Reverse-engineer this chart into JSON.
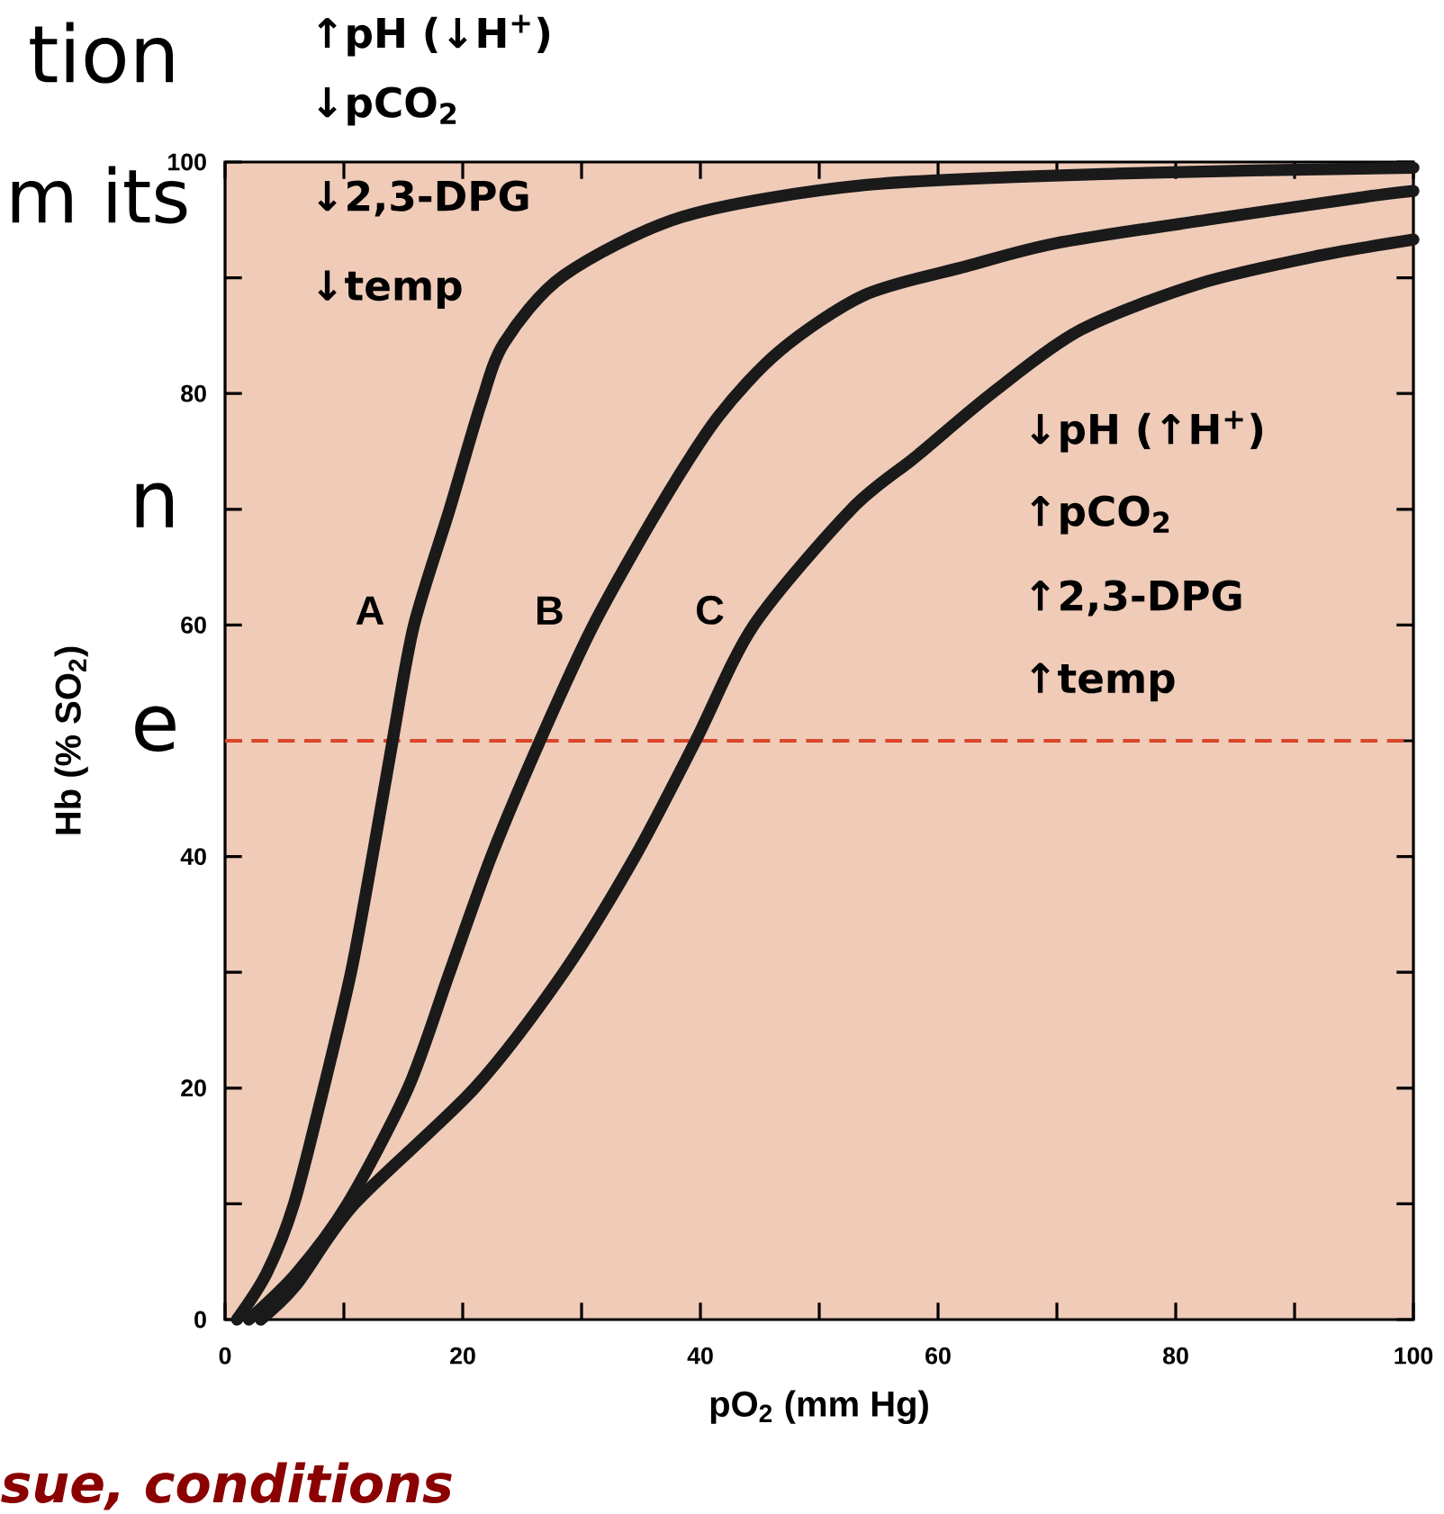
{
  "chart_data": {
    "type": "line",
    "xlabel": "pO$_{2}$ (mm Hg)",
    "ylabel": "Hb (% SO$_{2}$)",
    "xlim": [
      0,
      100
    ],
    "ylim": [
      0,
      100
    ],
    "xticks": [
      0,
      {
        "value": 10,
        "label": null
      },
      20,
      {
        "value": 30,
        "label": null
      },
      40,
      {
        "value": 50,
        "label": null
      },
      60,
      {
        "value": 70,
        "label": null
      },
      80,
      {
        "value": 90,
        "label": null
      },
      100
    ],
    "yticks": [
      0,
      {
        "value": 10,
        "label": null
      },
      20,
      {
        "value": 30,
        "label": null
      },
      40,
      {
        "value": 50,
        "label": null
      },
      60,
      {
        "value": 70,
        "label": null
      },
      80,
      {
        "value": 90,
        "label": null
      },
      100
    ],
    "grid": false,
    "marker": "none",
    "line_style": "solid",
    "series": [
      {
        "name": "A",
        "color": "#1a1a1a",
        "x": [
          1,
          3.5,
          5.8,
          8.3,
          10.6,
          12.4,
          14.1,
          15.9,
          18.9,
          21.5,
          23.5,
          28.5,
          38.6,
          53.8,
          75,
          100
        ],
        "values": [
          0,
          4,
          10,
          20,
          30,
          40,
          50,
          60,
          70,
          79,
          84.4,
          90.2,
          95.3,
          98,
          99,
          99.5
        ]
      },
      {
        "name": "B",
        "color": "#1a1a1a",
        "x": [
          2,
          6,
          10.3,
          15.4,
          18.9,
          22.4,
          26.5,
          31,
          36.7,
          41.5,
          46.7,
          53.8,
          62.4,
          70,
          82.6,
          96,
          100
        ],
        "values": [
          0,
          4,
          10,
          20,
          30,
          40,
          50,
          60,
          70.4,
          78,
          83.7,
          88.5,
          91,
          93,
          95,
          97,
          97.5
        ]
      },
      {
        "name": "C",
        "color": "#1a1a1a",
        "x": [
          3,
          6,
          10.9,
          21,
          28.5,
          34.5,
          39.6,
          44.5,
          52.7,
          58.2,
          64.5,
          72,
          82,
          92,
          100
        ],
        "values": [
          0,
          3,
          10,
          20,
          30,
          40,
          50,
          60,
          70,
          74.6,
          80,
          85.5,
          89.5,
          91.9,
          93.3
        ]
      }
    ],
    "ref_lines": [
      {
        "axis": "y",
        "value": 50,
        "color": "#d9472b",
        "line_style": "dashed"
      }
    ],
    "annotations": [
      "tion",
      "m its",
      "n",
      "e",
      "sue, conditions",
      "↑pH (↓H$^{+}$)",
      "↓pCO$_{2}$",
      "↓2,3-DPG",
      "↓temp",
      "↓pH (↑H$^{+}$)",
      "↑pCO$_{2}$",
      "↑2,3-DPG",
      "↑temp"
    ]
  }
}
